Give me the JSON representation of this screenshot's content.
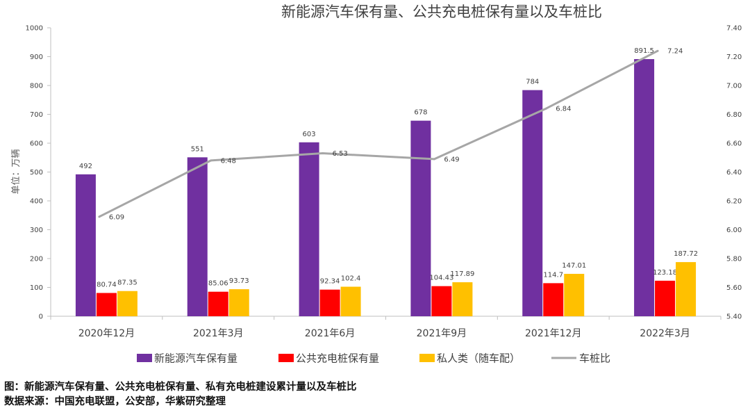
{
  "chart_data": {
    "type": "bar",
    "title": "新能源汽车保有量、公共充电桩保有量以及车桩比",
    "ylabel": "单位：万辆",
    "ylim": [
      0,
      1000
    ],
    "y_ticks": [
      0,
      100,
      200,
      300,
      400,
      500,
      600,
      700,
      800,
      900,
      1000
    ],
    "y2lim": [
      5.4,
      7.4
    ],
    "y2_ticks": [
      "5.40",
      "5.60",
      "5.80",
      "6.00",
      "6.20",
      "6.40",
      "6.60",
      "6.80",
      "7.00",
      "7.20",
      "7.40"
    ],
    "categories": [
      "2020年12月",
      "2021年3月",
      "2021年6月",
      "2021年9月",
      "2021年12月",
      "2022年3月"
    ],
    "series": [
      {
        "name": "新能源汽车保有量",
        "values": [
          492,
          551,
          603,
          678,
          784,
          891.5
        ],
        "labels": [
          "492",
          "551",
          "603",
          "678",
          "784",
          "891.5"
        ],
        "color": "#7030A0",
        "axis": "left"
      },
      {
        "name": "公共充电桩保有量",
        "values": [
          80.74,
          85.06,
          92.34,
          104.43,
          114.7,
          123.18
        ],
        "labels": [
          "80.74",
          "85.06",
          "92.34",
          "104.43",
          "114.7",
          "123.18"
        ],
        "color": "#FF0000",
        "axis": "left"
      },
      {
        "name": "私人类（随车配）",
        "values": [
          87.35,
          93.73,
          102.4,
          117.89,
          147.01,
          187.72
        ],
        "labels": [
          "87.35",
          "93.73",
          "102.4",
          "117.89",
          "147.01",
          "187.72"
        ],
        "color": "#FFC000",
        "axis": "left"
      }
    ],
    "line_series": {
      "name": "车桩比",
      "values": [
        6.09,
        6.48,
        6.53,
        6.49,
        6.84,
        7.24
      ],
      "labels": [
        "6.09",
        "6.48",
        "6.53",
        "6.49",
        "6.84",
        "7.24"
      ],
      "color": "#A6A6A6",
      "axis": "right"
    },
    "legend_position": "bottom"
  },
  "captions": {
    "figure": "图：新能源汽车保有量、公共充电桩保有量、私有充电桩建设累计量以及车桩比",
    "source": "数据来源：中国充电联盟，公安部，华紫研究整理"
  }
}
